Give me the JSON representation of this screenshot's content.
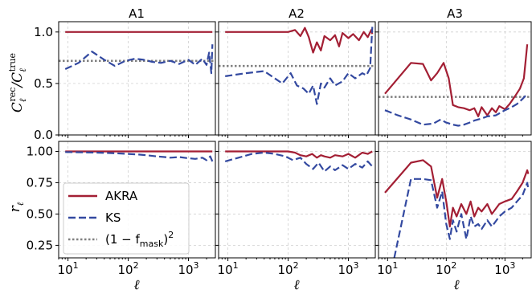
{
  "colors": {
    "akra": "#a31f34",
    "ks": "#3349a0",
    "mask": "#808080",
    "grid": "#d0d0d0"
  },
  "chart_data": {
    "type": "line",
    "x_scale": "log",
    "xlim": [
      7,
      2800
    ],
    "xticks": [
      10,
      100,
      1000
    ],
    "xtick_labels": [
      "10",
      "2",
      "10",
      "2",
      "10",
      "3"
    ],
    "xtick_label_base": "10",
    "xtick_label_exps": [
      "1",
      "2",
      "3"
    ],
    "xlabel": "ℓ",
    "columns": [
      "A1",
      "A2",
      "A3"
    ],
    "grid": true,
    "legend": {
      "placement": "lower-left",
      "entries": [
        {
          "label": "AKRA",
          "style": "solid"
        },
        {
          "label": "KS",
          "style": "dashed"
        },
        {
          "label": "(1 − f",
          "sub": "mask",
          "tail": ")",
          "sup": "2",
          "style": "dotted"
        }
      ]
    },
    "rows": [
      {
        "ylabel_main": "C",
        "ylabel_sup_num": "rec",
        "ylabel_sub": "ℓ",
        "ylabel_sep": "/",
        "ylabel_sup_den": "true",
        "ylim": [
          0,
          1.1
        ],
        "yticks": [
          0,
          0.5,
          1.0
        ],
        "ytick_labels": [
          "0.0",
          "0.5",
          "1.0"
        ],
        "panels": [
          {
            "title": "A1",
            "mask_level": 0.72,
            "series": [
              {
                "name": "AKRA",
                "x": [
                  9,
                  2500
                ],
                "y": [
                  1.0,
                  1.0
                ]
              },
              {
                "name": "KS",
                "x": [
                  9,
                  15,
                  25,
                  40,
                  60,
                  90,
                  130,
                  180,
                  250,
                  350,
                  500,
                  700,
                  1000,
                  1300,
                  1700,
                  2000,
                  2200,
                  2400,
                  2500
                ],
                "y": [
                  0.64,
                  0.7,
                  0.81,
                  0.73,
                  0.67,
                  0.72,
                  0.74,
                  0.73,
                  0.71,
                  0.7,
                  0.72,
                  0.69,
                  0.73,
                  0.68,
                  0.74,
                  0.68,
                  0.8,
                  0.6,
                  0.88
                ]
              }
            ]
          },
          {
            "title": "A2",
            "mask_level": 0.67,
            "series": [
              {
                "name": "AKRA",
                "x": [
                  9,
                  30,
                  60,
                  100,
                  130,
                  160,
                  190,
                  220,
                  260,
                  300,
                  350,
                  400,
                  500,
                  600,
                  700,
                  800,
                  1000,
                  1200,
                  1500,
                  1800,
                  2100,
                  2400,
                  2500
                ],
                "y": [
                  1.0,
                  1.0,
                  1.0,
                  1.0,
                  1.02,
                  0.96,
                  1.04,
                  0.95,
                  0.8,
                  0.9,
                  0.82,
                  0.96,
                  0.92,
                  0.97,
                  0.86,
                  0.99,
                  0.94,
                  0.98,
                  0.92,
                  1.0,
                  0.95,
                  1.02,
                  0.98
                ]
              },
              {
                "name": "KS",
                "x": [
                  9,
                  20,
                  40,
                  60,
                  80,
                  110,
                  140,
                  180,
                  220,
                  260,
                  300,
                  350,
                  400,
                  500,
                  600,
                  800,
                  1000,
                  1300,
                  1700,
                  2000,
                  2300,
                  2500
                ],
                "y": [
                  0.57,
                  0.6,
                  0.62,
                  0.55,
                  0.5,
                  0.6,
                  0.48,
                  0.45,
                  0.4,
                  0.48,
                  0.3,
                  0.5,
                  0.46,
                  0.55,
                  0.48,
                  0.52,
                  0.6,
                  0.55,
                  0.6,
                  0.58,
                  0.65,
                  1.05
                ]
              }
            ]
          },
          {
            "title": "A3",
            "mask_level": 0.37,
            "series": [
              {
                "name": "AKRA",
                "x": [
                  9,
                  25,
                  40,
                  55,
                  70,
                  90,
                  110,
                  130,
                  160,
                  200,
                  250,
                  300,
                  350,
                  400,
                  500,
                  600,
                  700,
                  800,
                  1000,
                  1200,
                  1500,
                  1800,
                  2100,
                  2400
                ],
                "y": [
                  0.4,
                  0.7,
                  0.69,
                  0.53,
                  0.6,
                  0.7,
                  0.55,
                  0.29,
                  0.27,
                  0.26,
                  0.24,
                  0.26,
                  0.18,
                  0.27,
                  0.19,
                  0.26,
                  0.22,
                  0.28,
                  0.25,
                  0.3,
                  0.38,
                  0.45,
                  0.55,
                  0.88
                ]
              },
              {
                "name": "KS",
                "x": [
                  9,
                  15,
                  25,
                  40,
                  60,
                  80,
                  100,
                  130,
                  160,
                  200,
                  250,
                  300,
                  400,
                  500,
                  700,
                  1000,
                  1300,
                  1600,
                  2000,
                  2400
                ],
                "y": [
                  0.24,
                  0.19,
                  0.15,
                  0.1,
                  0.11,
                  0.15,
                  0.12,
                  0.1,
                  0.09,
                  0.1,
                  0.12,
                  0.14,
                  0.16,
                  0.18,
                  0.19,
                  0.24,
                  0.27,
                  0.3,
                  0.35,
                  0.4
                ]
              }
            ]
          }
        ]
      },
      {
        "ylabel_main": "r",
        "ylabel_sub": "ℓ",
        "ylim": [
          0.15,
          1.08
        ],
        "yticks": [
          0.25,
          0.5,
          0.75,
          1.0
        ],
        "ytick_labels": [
          "0.25",
          "0.50",
          "0.75",
          "1.00"
        ],
        "panels": [
          {
            "series": [
              {
                "name": "AKRA",
                "x": [
                  9,
                  2500
                ],
                "y": [
                  1.0,
                  1.0
                ]
              },
              {
                "name": "KS",
                "x": [
                  9,
                  30,
                  60,
                  100,
                  150,
                  200,
                  300,
                  400,
                  500,
                  700,
                  1000,
                  1300,
                  1700,
                  2000,
                  2300,
                  2500
                ],
                "y": [
                  0.995,
                  0.99,
                  0.985,
                  0.98,
                  0.975,
                  0.97,
                  0.96,
                  0.955,
                  0.95,
                  0.955,
                  0.945,
                  0.94,
                  0.95,
                  0.93,
                  0.96,
                  0.92
                ]
              }
            ]
          },
          {
            "series": [
              {
                "name": "AKRA",
                "x": [
                  9,
                  30,
                  60,
                  100,
                  130,
                  160,
                  200,
                  250,
                  300,
                  350,
                  400,
                  500,
                  600,
                  800,
                  1000,
                  1300,
                  1700,
                  2100,
                  2500
                ],
                "y": [
                  1.0,
                  1.0,
                  1.0,
                  1.0,
                  0.99,
                  0.97,
                  0.96,
                  0.98,
                  0.95,
                  0.97,
                  0.96,
                  0.95,
                  0.97,
                  0.96,
                  0.98,
                  0.95,
                  0.99,
                  0.98,
                  1.0
                ]
              },
              {
                "name": "KS",
                "x": [
                  9,
                  15,
                  25,
                  40,
                  60,
                  90,
                  120,
                  160,
                  200,
                  260,
                  320,
                  400,
                  500,
                  600,
                  800,
                  1000,
                  1300,
                  1700,
                  2100,
                  2500
                ],
                "y": [
                  0.92,
                  0.95,
                  0.98,
                  0.99,
                  0.98,
                  0.96,
                  0.93,
                  0.95,
                  0.9,
                  0.86,
                  0.91,
                  0.84,
                  0.88,
                  0.85,
                  0.89,
                  0.86,
                  0.9,
                  0.87,
                  0.92,
                  0.88
                ]
              }
            ]
          },
          {
            "series": [
              {
                "name": "AKRA",
                "x": [
                  9,
                  25,
                  40,
                  55,
                  70,
                  85,
                  100,
                  115,
                  130,
                  150,
                  180,
                  220,
                  260,
                  300,
                  350,
                  400,
                  500,
                  600,
                  800,
                  1000,
                  1300,
                  1600,
                  2000,
                  2400,
                  2500
                ],
                "y": [
                  0.67,
                  0.91,
                  0.93,
                  0.88,
                  0.63,
                  0.78,
                  0.6,
                  0.4,
                  0.55,
                  0.48,
                  0.58,
                  0.5,
                  0.6,
                  0.48,
                  0.55,
                  0.52,
                  0.58,
                  0.5,
                  0.58,
                  0.6,
                  0.62,
                  0.68,
                  0.75,
                  0.85,
                  0.82
                ]
              },
              {
                "name": "KS",
                "x": [
                  13,
                  25,
                  40,
                  55,
                  70,
                  85,
                  100,
                  115,
                  130,
                  150,
                  180,
                  220,
                  260,
                  300,
                  350,
                  400,
                  500,
                  600,
                  800,
                  1000,
                  1300,
                  1600,
                  2000,
                  2400,
                  2500
                ],
                "y": [
                  0.15,
                  0.78,
                  0.78,
                  0.77,
                  0.55,
                  0.68,
                  0.42,
                  0.3,
                  0.45,
                  0.36,
                  0.5,
                  0.3,
                  0.48,
                  0.4,
                  0.42,
                  0.38,
                  0.45,
                  0.4,
                  0.48,
                  0.52,
                  0.55,
                  0.6,
                  0.65,
                  0.75,
                  0.7
                ]
              }
            ]
          }
        ]
      }
    ]
  }
}
